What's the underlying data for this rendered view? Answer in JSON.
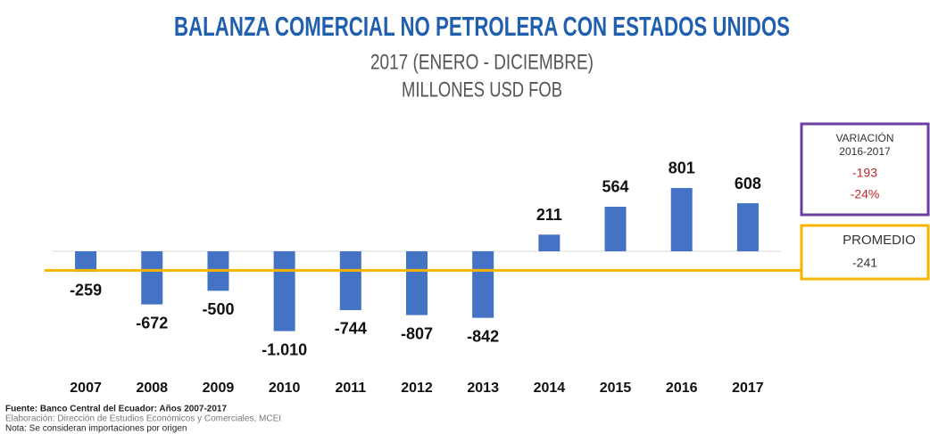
{
  "chart_data": {
    "type": "bar",
    "title": "BALANZA COMERCIAL NO PETROLERA CON ESTADOS UNIDOS",
    "subtitle": "2017 (ENERO - DICIEMBRE)",
    "subtitle2": "MILLONES USD FOB",
    "categories": [
      "2007",
      "2008",
      "2009",
      "2010",
      "2011",
      "2012",
      "2013",
      "2014",
      "2015",
      "2016",
      "2017"
    ],
    "values": [
      -259,
      -672,
      -500,
      -1010,
      -744,
      -807,
      -842,
      211,
      564,
      801,
      608
    ],
    "value_labels": [
      "-259",
      "-672",
      "-500",
      "-1.010",
      "-744",
      "-807",
      "-842",
      "211",
      "564",
      "801",
      "608"
    ],
    "color": "#4472c4",
    "ylim": [
      -1200,
      1000
    ],
    "average": {
      "name": "PROMEDIO",
      "value": -241,
      "label": "-241",
      "color": "#f7b500"
    },
    "variation": {
      "title": "VARIACIÓN",
      "period": "2016-2017",
      "value": "-193",
      "percent": "-24%",
      "color": "#6b3fa0"
    },
    "notes": [
      "Fuente: Banco Central del Ecuador: Años 2007-2017",
      "Elaboración: Dirección de Estudios Económicos y Comerciales, MCEI",
      "Nota: Se consideran importaciones por origen"
    ]
  }
}
